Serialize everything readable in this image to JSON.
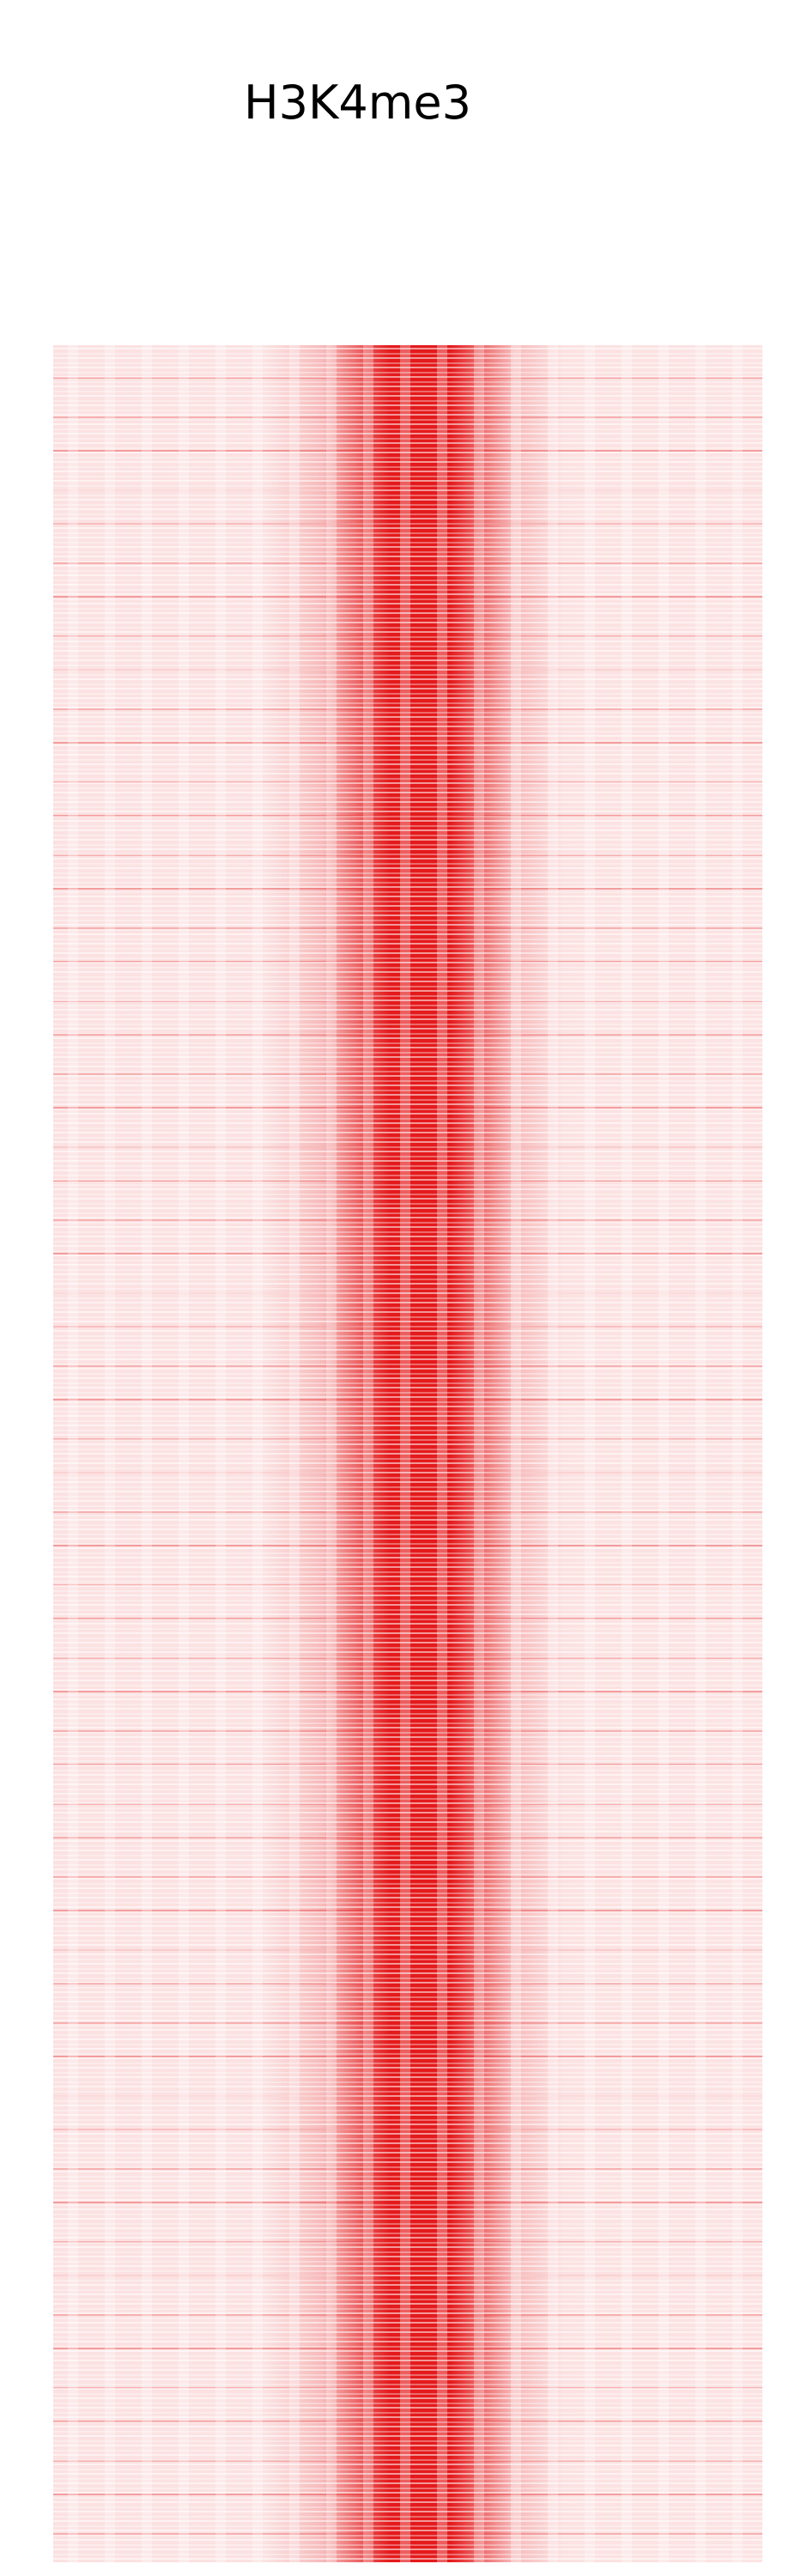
{
  "chart_data": {
    "type": "heatmap",
    "title": "H3K4me3"
  }
}
